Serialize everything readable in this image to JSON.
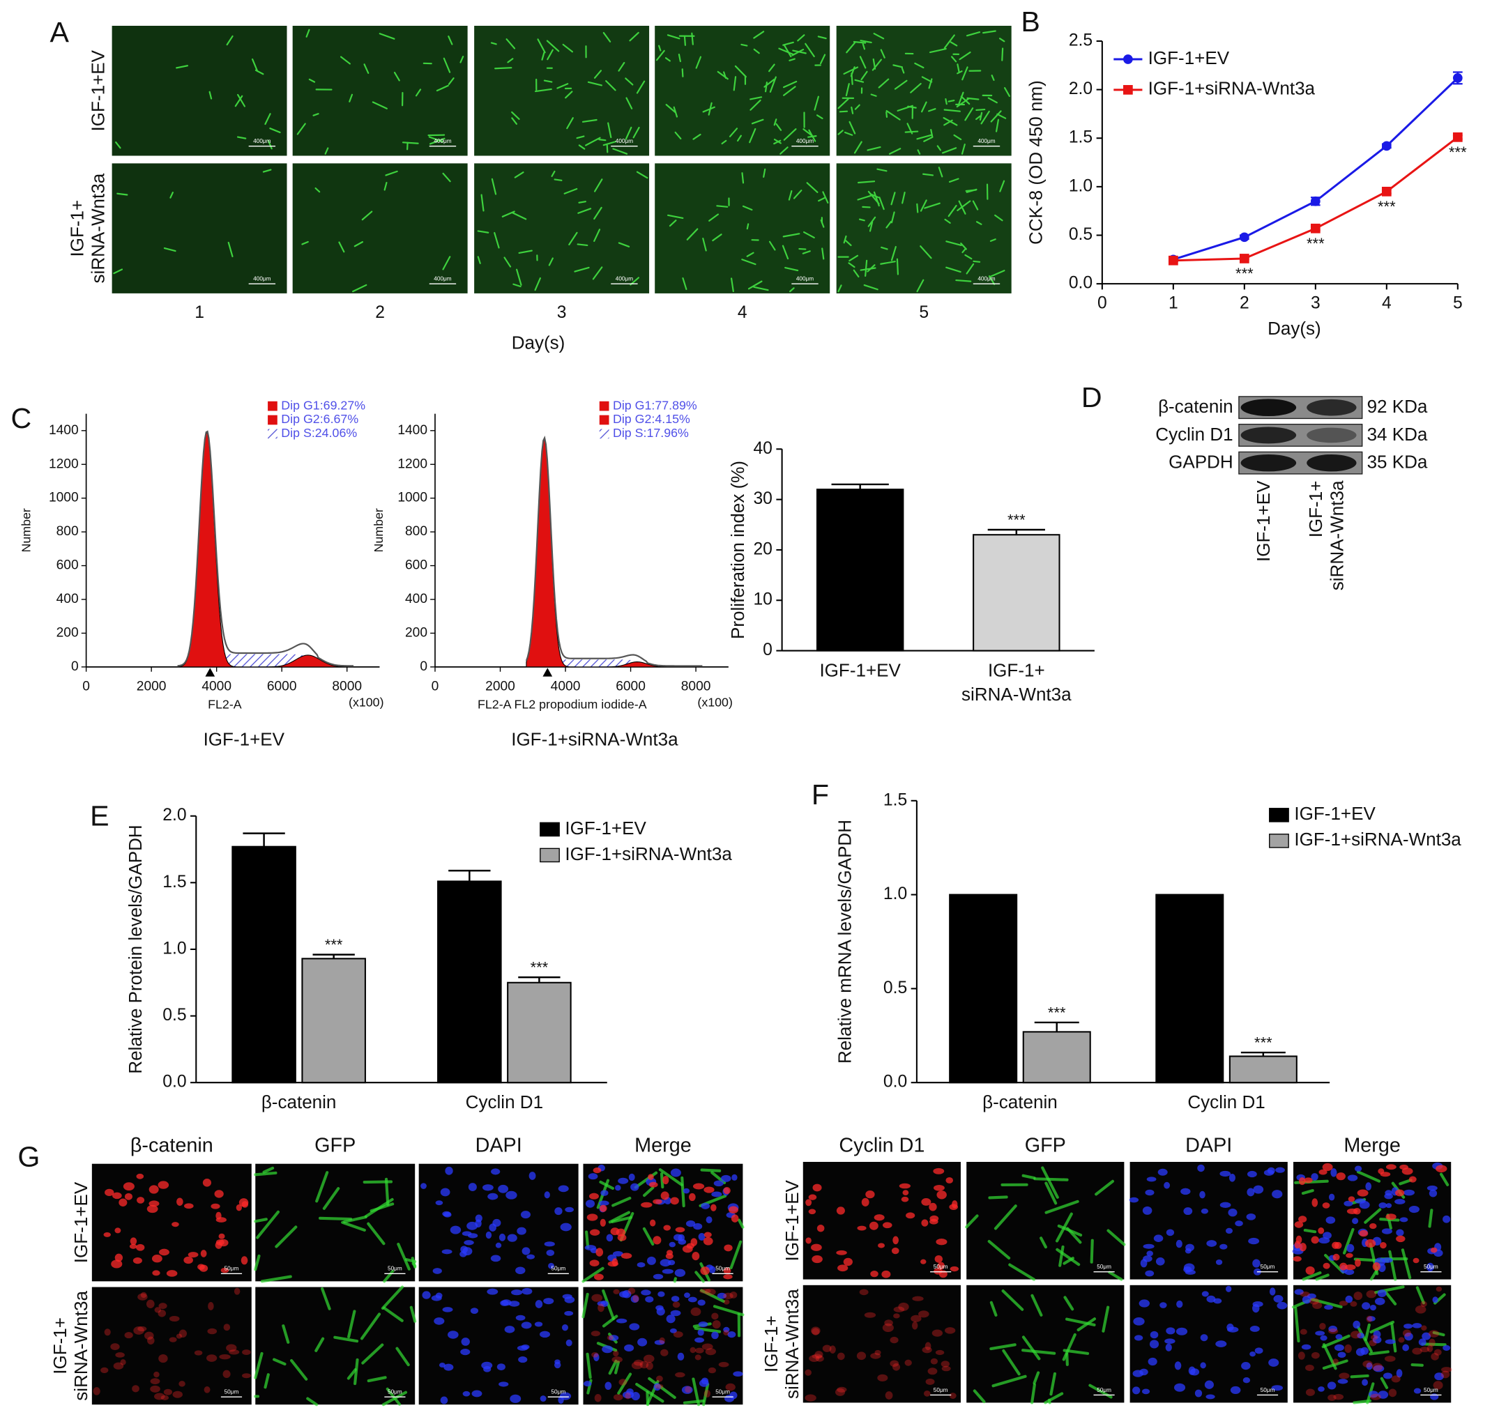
{
  "labels": {
    "a": "A",
    "b": "B",
    "c": "C",
    "d": "D",
    "e": "E",
    "f": "F",
    "g": "G"
  },
  "panel_a": {
    "row_labels": [
      [
        "IGF-1+EV"
      ],
      [
        "IGF-1+",
        "siRNA-Wnt3a"
      ]
    ],
    "days": [
      "1",
      "2",
      "3",
      "4",
      "5"
    ],
    "xlabel": "Day(s)",
    "scale_bar": "400μm"
  },
  "chart_data": [
    {
      "type": "line",
      "x": [
        1,
        2,
        3,
        4,
        5
      ],
      "xlim": [
        0,
        5
      ],
      "xticks": [
        0,
        1,
        2,
        3,
        4,
        5
      ],
      "xlabel": "Day(s)",
      "ylabel": "CCK-8 (OD 450 nm)",
      "ylim": [
        0,
        2.5
      ],
      "yticks": [
        {
          "value": 0,
          "label": "0.0"
        },
        0.5,
        {
          "value": 1,
          "label": "1.0"
        },
        1.5,
        {
          "value": 2,
          "label": "2.0"
        },
        2.5
      ],
      "legend": "upper left",
      "series": [
        {
          "name": "IGF-1+EV",
          "color": "#1a1ae6",
          "marker": "circle",
          "values": [
            0.25,
            0.48,
            0.85,
            1.42,
            2.12
          ],
          "errors": [
            0.02,
            0.02,
            0.04,
            0.02,
            0.06
          ]
        },
        {
          "name": "IGF-1+siRNA-Wnt3a",
          "color": "#e81414",
          "marker": "square",
          "values": [
            0.24,
            0.26,
            0.57,
            0.95,
            1.51
          ],
          "errors": [
            0.01,
            0.01,
            0.02,
            0.02,
            0.02
          ],
          "significance": [
            null,
            "***",
            "***",
            "***",
            "***"
          ]
        }
      ]
    },
    {
      "type": "bar",
      "categories": [
        [
          "IGF-1+EV"
        ],
        [
          "IGF-1+",
          "siRNA-Wnt3a"
        ]
      ],
      "values": [
        32,
        23
      ],
      "errors": [
        1,
        1
      ],
      "significance": [
        null,
        "***"
      ],
      "colors": [
        "#000000",
        "#d3d3d3"
      ],
      "ylabel": "Proliferation index (%)",
      "ylim": [
        0,
        40
      ],
      "yticks": [
        0,
        10,
        20,
        30,
        40
      ]
    },
    {
      "type": "bar",
      "categories": [
        [
          "β-catenin"
        ],
        [
          "Cyclin D1"
        ]
      ],
      "ylabel": "Relative Protein levels/GAPDH",
      "ylim": [
        0,
        2
      ],
      "yticks": [
        {
          "value": 0,
          "label": "0.0"
        },
        0.5,
        {
          "value": 1,
          "label": "1.0"
        },
        1.5,
        {
          "value": 2,
          "label": "2.0"
        }
      ],
      "legend": "upper right",
      "series": [
        {
          "name": "IGF-1+EV",
          "color": "#000000",
          "values": [
            1.77,
            1.51
          ],
          "errors": [
            0.1,
            0.08
          ]
        },
        {
          "name": "IGF-1+siRNA-Wnt3a",
          "color": "#a3a3a3",
          "values": [
            0.93,
            0.75
          ],
          "errors": [
            0.03,
            0.04
          ],
          "significance": [
            "***",
            "***"
          ]
        }
      ]
    },
    {
      "type": "bar",
      "categories": [
        [
          "β-catenin"
        ],
        [
          "Cyclin D1"
        ]
      ],
      "ylabel": "Relative mRNA levels/GAPDH",
      "ylim": [
        0,
        1.5
      ],
      "yticks": [
        {
          "value": 0,
          "label": "0.0"
        },
        0.5,
        {
          "value": 1,
          "label": "1.0"
        },
        1.5
      ],
      "legend": "upper right",
      "series": [
        {
          "name": "IGF-1+EV",
          "color": "#000000",
          "values": [
            1,
            1
          ]
        },
        {
          "name": "IGF-1+siRNA-Wnt3a",
          "color": "#a3a3a3",
          "values": [
            0.27,
            0.14
          ],
          "errors": [
            0.05,
            0.02
          ],
          "significance": [
            "***",
            "***"
          ]
        }
      ]
    }
  ],
  "flow": [
    {
      "legend": [
        "Dip G1:69.27%",
        "Dip G2:6.67%",
        "Dip S:24.06%"
      ],
      "xlabel": "FL2-A",
      "x_unit": "(x100)",
      "ylabel": "Number",
      "caption": "IGF-1+EV",
      "xlim": [
        0,
        9000
      ],
      "xticks": [
        0,
        2000,
        4000,
        6000,
        8000
      ],
      "ylim": [
        0,
        1500
      ],
      "yticks": [
        0,
        200,
        400,
        600,
        800,
        1000,
        1200,
        1400
      ]
    },
    {
      "legend": [
        "Dip G1:77.89%",
        "Dip G2:4.15%",
        "Dip S:17.96%"
      ],
      "xlabel": "FL2-A FL2 propodium iodide-A",
      "x_unit": "(x100)",
      "ylabel": "Number",
      "caption": "IGF-1+siRNA-Wnt3a",
      "xlim": [
        0,
        9000
      ],
      "xticks": [
        0,
        2000,
        4000,
        6000,
        8000
      ],
      "ylim": [
        0,
        1500
      ],
      "yticks": [
        0,
        200,
        400,
        600,
        800,
        1000,
        1200,
        1400
      ]
    }
  ],
  "western": {
    "bands": [
      "β-catenin",
      "Cyclin D1",
      "GAPDH"
    ],
    "sizes": [
      "92 KDa",
      "34 KDa",
      "35 KDa"
    ],
    "lanes": [
      [
        "IGF-1+EV"
      ],
      [
        "IGF-1+",
        "siRNA-Wnt3a"
      ]
    ]
  },
  "panel_g": [
    {
      "columns": [
        "β-catenin",
        "GFP",
        "DAPI",
        "Merge"
      ],
      "rows": [
        [
          "IGF-1+EV"
        ],
        [
          "IGF-1+",
          "siRNA-Wnt3a"
        ]
      ],
      "scale_bar": "50μm"
    },
    {
      "columns": [
        "Cyclin D1",
        "GFP",
        "DAPI",
        "Merge"
      ],
      "rows": [
        [
          "IGF-1+EV"
        ],
        [
          "IGF-1+",
          "siRNA-Wnt3a"
        ]
      ],
      "scale_bar": "50μm"
    }
  ]
}
